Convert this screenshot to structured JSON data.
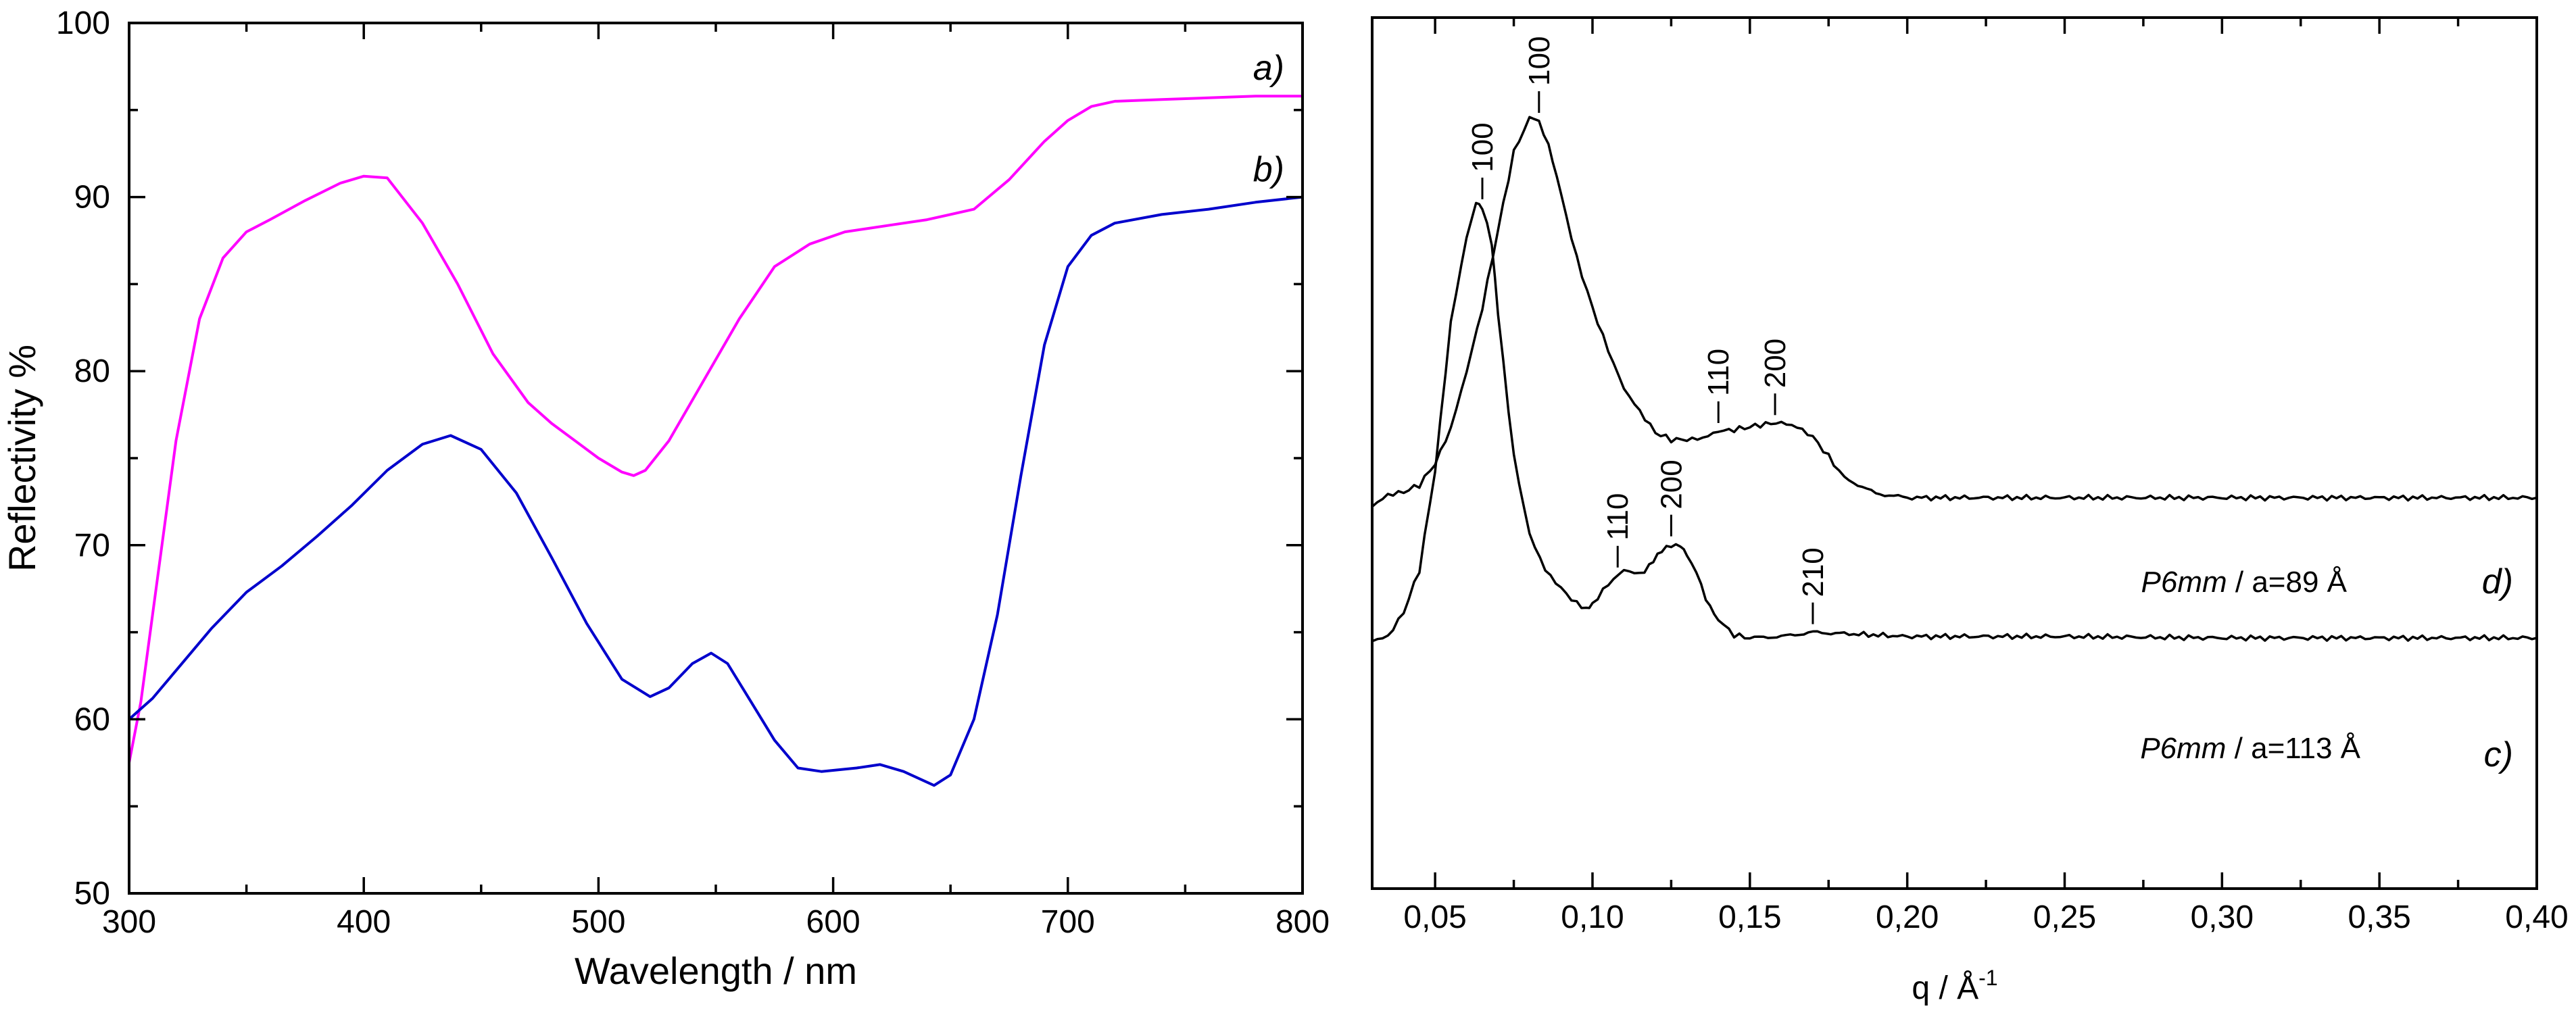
{
  "chart_data": [
    {
      "type": "line",
      "xlabel": "Wavelength / nm",
      "ylabel": "Reflectivity %",
      "xlim": [
        300,
        800
      ],
      "ylim": [
        50,
        100
      ],
      "x_ticks": [
        "300",
        "400",
        "500",
        "600",
        "700",
        "800"
      ],
      "y_ticks": [
        "50",
        "60",
        "70",
        "80",
        "90",
        "100"
      ],
      "grid": false,
      "series": [
        {
          "name": "a)",
          "color": "#ff00ff",
          "x": [
            300,
            305,
            310,
            320,
            330,
            340,
            350,
            360,
            375,
            390,
            400,
            410,
            425,
            440,
            455,
            470,
            480,
            490,
            500,
            510,
            515,
            520,
            530,
            545,
            560,
            575,
            590,
            605,
            615,
            625,
            640,
            660,
            675,
            690,
            700,
            710,
            720,
            740,
            760,
            780,
            800
          ],
          "y": [
            57.5,
            61,
            66,
            76,
            83,
            86.5,
            88,
            88.7,
            89.8,
            90.8,
            91.2,
            91.1,
            88.5,
            85,
            81,
            78.2,
            77,
            76,
            75,
            74.2,
            74,
            74.3,
            76,
            79.5,
            83,
            86,
            87.3,
            88,
            88.2,
            88.4,
            88.7,
            89.3,
            91,
            93.2,
            94.4,
            95.2,
            95.5,
            95.6,
            95.7,
            95.8,
            95.8
          ]
        },
        {
          "name": "b)",
          "color": "#0000cc",
          "x": [
            300,
            310,
            320,
            335,
            350,
            365,
            380,
            395,
            410,
            425,
            437,
            450,
            465,
            480,
            495,
            510,
            522,
            530,
            540,
            548,
            555,
            565,
            575,
            585,
            595,
            610,
            620,
            630,
            643,
            650,
            660,
            670,
            680,
            690,
            700,
            710,
            720,
            740,
            760,
            780,
            800
          ],
          "y": [
            60,
            61.2,
            62.8,
            65.2,
            67.3,
            68.8,
            70.5,
            72.3,
            74.3,
            75.8,
            76.3,
            75.5,
            73,
            69.3,
            65.5,
            62.3,
            61.3,
            61.8,
            63.2,
            63.8,
            63.2,
            61,
            58.8,
            57.2,
            57,
            57.2,
            57.4,
            57,
            56.2,
            56.8,
            60,
            66,
            74,
            81.5,
            86,
            87.8,
            88.5,
            89,
            89.3,
            89.7,
            90
          ]
        }
      ],
      "annotations": [
        "a)",
        "b)"
      ]
    },
    {
      "type": "line",
      "xlabel": "q / Å",
      "xlabel_superscript": "-1",
      "ylabel": "",
      "xlim": [
        0.03,
        0.4
      ],
      "x_ticks": [
        "0,05",
        "0,10",
        "0,15",
        "0,20",
        "0,25",
        "0,30",
        "0,35",
        "0,40"
      ],
      "y_ticks": [],
      "grid": false,
      "series": [
        {
          "name": "d)",
          "color": "#000000",
          "phase_label_italic": "P6mm",
          "phase_label_rest": " / a=89 Å",
          "x": [
            0.03,
            0.035,
            0.04,
            0.045,
            0.05,
            0.055,
            0.06,
            0.065,
            0.07,
            0.075,
            0.08,
            0.083,
            0.086,
            0.09,
            0.095,
            0.1,
            0.105,
            0.11,
            0.115,
            0.12,
            0.125,
            0.13,
            0.135,
            0.14,
            0.145,
            0.15,
            0.155,
            0.16,
            0.165,
            0.17,
            0.175,
            0.18,
            0.19,
            0.2,
            0.25,
            0.3,
            0.35,
            0.4
          ],
          "y": [
            65.5,
            66.3,
            66.5,
            67,
            68.5,
            71,
            75,
            79.5,
            85,
            90.5,
            92.9,
            92.7,
            91,
            87.5,
            83,
            79.5,
            76.5,
            73.8,
            72.2,
            70.7,
            70.2,
            70.2,
            70.3,
            70.8,
            70.9,
            71.1,
            71.3,
            71.4,
            71.1,
            70.4,
            69,
            67.5,
            66.4,
            66.1,
            66.1,
            66.1,
            66.1,
            66.1
          ]
        },
        {
          "name": "c)",
          "color": "#000000",
          "phase_label_italic": "P6mm",
          "phase_label_rest": " / a=113 Å",
          "x": [
            0.03,
            0.035,
            0.04,
            0.045,
            0.05,
            0.055,
            0.06,
            0.063,
            0.065,
            0.068,
            0.07,
            0.075,
            0.08,
            0.085,
            0.09,
            0.095,
            0.098,
            0.1,
            0.105,
            0.11,
            0.115,
            0.118,
            0.122,
            0.125,
            0.128,
            0.13,
            0.133,
            0.136,
            0.14,
            0.145,
            0.15,
            0.16,
            0.17,
            0.18,
            0.2,
            0.25,
            0.3,
            0.35,
            0.4
          ],
          "y": [
            56,
            56.3,
            58,
            61,
            68,
            78.5,
            84.5,
            86.8,
            86.6,
            84,
            79,
            69,
            63.5,
            61,
            59.7,
            58.6,
            58.3,
            58.6,
            60,
            61,
            60.7,
            61.3,
            62.3,
            62.8,
            62.7,
            62.1,
            60.8,
            59,
            57.5,
            56.4,
            56.2,
            56.3,
            56.6,
            56.5,
            56.3,
            56.3,
            56.2,
            56.2,
            56.2
          ]
        }
      ],
      "peak_labels": [
        {
          "text": "100",
          "series": "d)",
          "x": 0.083
        },
        {
          "text": "110",
          "series": "d)",
          "x": 0.14
        },
        {
          "text": "200",
          "series": "d)",
          "x": 0.158
        },
        {
          "text": "100",
          "series": "c)",
          "x": 0.065
        },
        {
          "text": "110",
          "series": "c)",
          "x": 0.108
        },
        {
          "text": "200",
          "series": "c)",
          "x": 0.125
        },
        {
          "text": "210",
          "series": "c)",
          "x": 0.17
        }
      ],
      "annotations": [
        "d)",
        "c)"
      ]
    }
  ]
}
